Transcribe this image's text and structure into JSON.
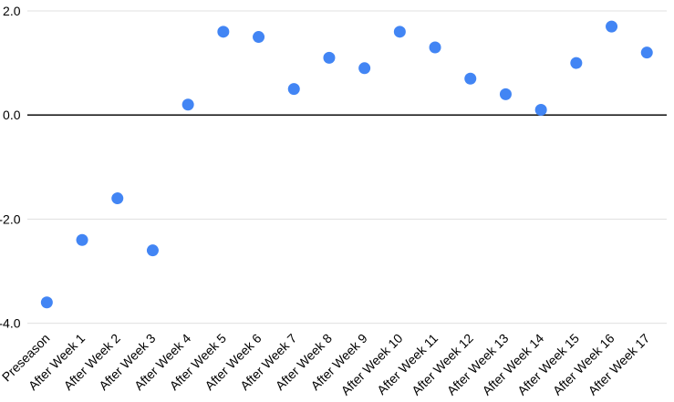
{
  "chart_data": {
    "type": "scatter",
    "title": "",
    "xlabel": "",
    "ylabel": "",
    "categories": [
      "Preseason",
      "After Week 1",
      "After Week 2",
      "After Week 3",
      "After Week 4",
      "After Week 5",
      "After Week 6",
      "After Week 7",
      "After Week 8",
      "After Week 9",
      "After Week 10",
      "After Week 11",
      "After Week 12",
      "After Week 13",
      "After Week 14",
      "After Week 15",
      "After Week 16",
      "After Week 17"
    ],
    "series": [
      {
        "name": "",
        "values": [
          -3.6,
          -2.4,
          -1.6,
          -2.6,
          0.2,
          1.6,
          1.5,
          0.5,
          1.1,
          0.9,
          1.6,
          1.3,
          0.7,
          0.4,
          0.1,
          1.0,
          1.7,
          1.2
        ]
      }
    ],
    "ylim": [
      -4.0,
      2.0
    ],
    "yticks": [
      {
        "value": 2.0,
        "label": "2.0"
      },
      {
        "value": 0.0,
        "label": "0.0"
      },
      {
        "value": -2.0,
        "label": "-2.0"
      },
      {
        "value": -4.0,
        "label": "-4.0"
      }
    ],
    "grid": true,
    "legend_position": "none",
    "x_labels_rotated_degrees": -45,
    "colors": {
      "point": "#4285f4",
      "gridline": "#e0e0e0",
      "zero_line": "#1f1f1f",
      "tick_label": "#000000",
      "background": "#ffffff"
    }
  }
}
